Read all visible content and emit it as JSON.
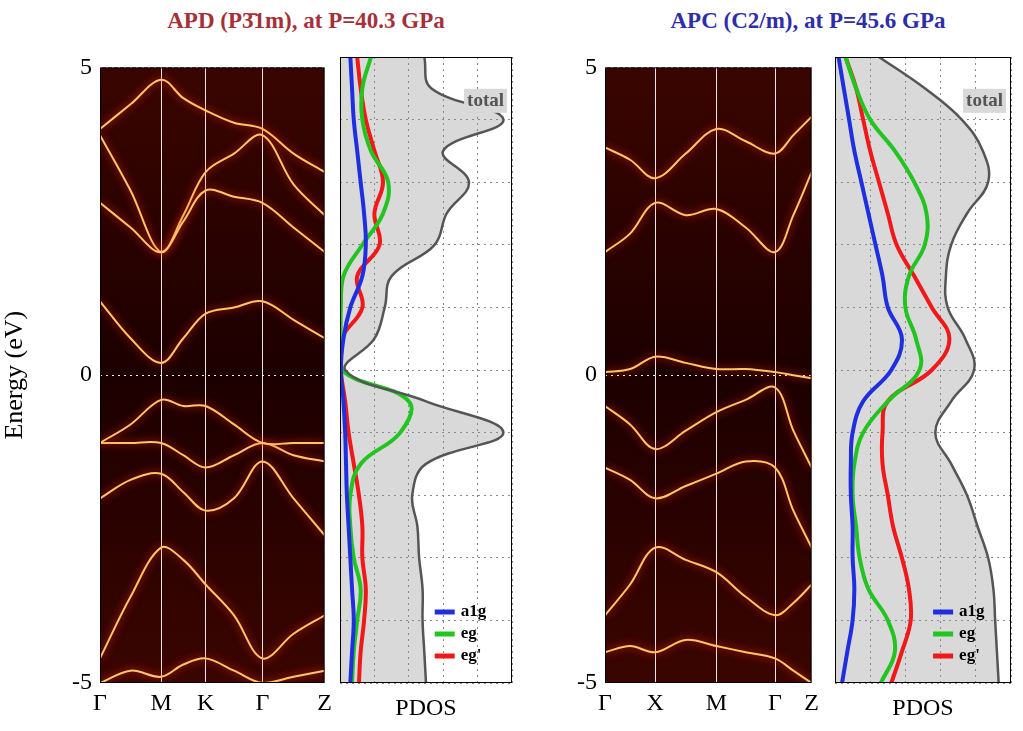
{
  "chart_data": [
    {
      "type": "line",
      "title": "APD (P3̄1m), at P=40.3 GPa",
      "y_label": "Energy (eV)",
      "x": [
        0,
        0.5,
        1,
        1.365,
        1.73,
        2.195,
        2.66,
        3.17,
        3.68
      ],
      "xlim": [
        0,
        3.68
      ],
      "xticks": [
        {
          "value": 0,
          "label": "Γ"
        },
        {
          "value": 1,
          "label": "M"
        },
        {
          "value": 1.73,
          "label": "K"
        },
        {
          "value": 2.66,
          "label": "Γ"
        },
        {
          "value": 3.68,
          "label": "Z"
        }
      ],
      "ylim": [
        -5,
        5
      ],
      "yticks": [
        -5,
        0,
        5
      ],
      "grid": true,
      "color": "#ffc46a",
      "series": [
        {
          "values": [
            1.2,
            0.6,
            0.2,
            0.6,
            1.0,
            1.1,
            1.2,
            0.9,
            0.6
          ]
        },
        {
          "values": [
            2.8,
            2.4,
            2.0,
            2.5,
            3.0,
            2.9,
            2.8,
            2.4,
            2.0
          ]
        },
        {
          "values": [
            3.9,
            3.0,
            2.0,
            2.6,
            3.3,
            3.6,
            3.9,
            3.1,
            2.6
          ]
        },
        {
          "values": [
            4.0,
            4.4,
            4.8,
            4.5,
            4.3,
            4.1,
            4.0,
            3.6,
            3.3
          ]
        },
        {
          "values": [
            -1.1,
            -0.8,
            -0.4,
            -0.5,
            -0.5,
            -0.8,
            -1.1,
            -1.1,
            -1.1
          ]
        },
        {
          "values": [
            -1.1,
            -1.1,
            -1.1,
            -1.3,
            -1.5,
            -1.3,
            -1.1,
            -1.3,
            -1.4
          ]
        },
        {
          "values": [
            -2.0,
            -1.7,
            -1.6,
            -1.9,
            -2.2,
            -2.0,
            -1.4,
            -2.0,
            -2.6
          ]
        },
        {
          "values": [
            -4.6,
            -3.6,
            -2.8,
            -3.0,
            -3.4,
            -3.9,
            -4.6,
            -4.2,
            -3.9
          ]
        },
        {
          "values": [
            -5,
            -4.8,
            -4.9,
            -4.7,
            -4.6,
            -4.8,
            -5,
            -4.9,
            -4.8
          ]
        }
      ]
    },
    {
      "type": "line",
      "orientation": "horizontal",
      "x_label": "PDOS",
      "y": [
        5,
        4.5,
        4,
        3.5,
        3,
        2.5,
        2,
        1.5,
        1,
        0.5,
        0,
        -0.5,
        -1,
        -1.5,
        -2,
        -2.5,
        -3,
        -3.5,
        -4,
        -4.5,
        -5
      ],
      "xlim": [
        0,
        10
      ],
      "xticks": [
        0,
        2,
        4,
        6,
        8,
        10
      ],
      "ylim": [
        -5,
        5
      ],
      "yticks": [
        -5,
        -4,
        -3,
        -2,
        -1,
        0,
        1,
        2,
        3,
        4,
        5
      ],
      "grid": true,
      "tick_labels": false,
      "legend": "lower right",
      "series": [
        {
          "name": "total",
          "type": "area",
          "color": "#555555",
          "values": [
            4.9,
            5.3,
            9.5,
            6.0,
            7.5,
            6.2,
            5.5,
            3.0,
            2.6,
            2.0,
            0.3,
            5.0,
            9.5,
            5.0,
            4.2,
            4.5,
            4.6,
            4.8,
            4.8,
            4.9,
            5.0
          ]
        },
        {
          "name": "a1g",
          "color": "#1f2fe0",
          "values": [
            0.6,
            0.7,
            0.8,
            1.0,
            1.2,
            1.4,
            1.5,
            1.3,
            0.6,
            0.2,
            0.05,
            0.2,
            0.3,
            0.35,
            0.4,
            0.5,
            0.6,
            0.7,
            0.8,
            0.7,
            0.6
          ]
        },
        {
          "name": "eg",
          "color": "#22c41f",
          "values": [
            1.8,
            1.3,
            1.3,
            1.8,
            2.8,
            2.5,
            1.3,
            0.2,
            0.05,
            0.05,
            0.1,
            4.0,
            3.5,
            1.2,
            0.6,
            0.6,
            0.8,
            1.2,
            1.0,
            0.8,
            0.7
          ]
        },
        {
          "name": "eg'",
          "color": "#f01818",
          "values": [
            1.0,
            1.2,
            1.5,
            2.0,
            2.5,
            2.0,
            2.3,
            1.0,
            1.3,
            0.1,
            0.05,
            0.3,
            0.5,
            0.8,
            1.1,
            1.3,
            1.3,
            1.5,
            1.4,
            1.2,
            1.1
          ]
        }
      ]
    },
    {
      "type": "line",
      "title": "APC (C2/m), at P=45.6 GPa",
      "x": [
        0,
        0.5,
        1,
        1.61,
        2.22,
        2.805,
        3.39,
        3.755,
        4.12
      ],
      "xlim": [
        0,
        4.12
      ],
      "xticks": [
        {
          "value": 0,
          "label": "Γ"
        },
        {
          "value": 1,
          "label": "X"
        },
        {
          "value": 2.22,
          "label": "M"
        },
        {
          "value": 3.39,
          "label": "Γ"
        },
        {
          "value": 4.12,
          "label": "Z"
        }
      ],
      "ylim": [
        -5,
        5
      ],
      "yticks": [
        -5,
        0,
        5
      ],
      "grid": true,
      "color": "#ffc46a",
      "series": [
        {
          "values": [
            0.05,
            0.1,
            0.3,
            0.2,
            0.1,
            0.1,
            0.05,
            0.0,
            -0.05
          ]
        },
        {
          "values": [
            2.0,
            2.3,
            2.8,
            2.6,
            2.7,
            2.4,
            2.0,
            2.6,
            3.3
          ]
        },
        {
          "values": [
            3.7,
            3.5,
            3.2,
            3.6,
            4.0,
            3.8,
            3.6,
            3.9,
            4.2
          ]
        },
        {
          "values": [
            -0.5,
            -0.8,
            -1.2,
            -0.9,
            -0.6,
            -0.4,
            -0.2,
            -0.9,
            -1.5
          ]
        },
        {
          "values": [
            -1.5,
            -1.7,
            -2.0,
            -1.8,
            -1.6,
            -1.4,
            -1.5,
            -2.2,
            -2.8
          ]
        },
        {
          "values": [
            -3.9,
            -3.4,
            -2.8,
            -3.0,
            -3.2,
            -3.6,
            -3.9,
            -3.7,
            -3.4
          ]
        },
        {
          "values": [
            -4.5,
            -4.4,
            -4.5,
            -4.3,
            -4.4,
            -4.5,
            -4.6,
            -4.8,
            -5
          ]
        }
      ]
    },
    {
      "type": "line",
      "orientation": "horizontal",
      "x_label": "PDOS",
      "y": [
        5,
        4.5,
        4,
        3.5,
        3,
        2.5,
        2,
        1.5,
        1,
        0.5,
        0,
        -0.5,
        -1,
        -1.5,
        -2,
        -2.5,
        -3,
        -3.5,
        -4,
        -4.5,
        -5
      ],
      "xlim": [
        0,
        10
      ],
      "xticks": [
        0,
        2,
        4,
        6,
        8,
        10
      ],
      "ylim": [
        -5,
        5
      ],
      "yticks": [
        -5,
        -4,
        -3,
        -2,
        -1,
        0,
        1,
        2,
        3,
        4,
        5
      ],
      "grid": true,
      "tick_labels": false,
      "legend": "lower right",
      "series": [
        {
          "name": "total",
          "type": "area",
          "color": "#555555",
          "values": [
            2.5,
            5.1,
            7.2,
            8.4,
            8.7,
            7.5,
            6.6,
            6.3,
            6.4,
            7.4,
            7.9,
            6.6,
            5.7,
            6.6,
            7.5,
            8.1,
            8.7,
            9.0,
            9.1,
            9.2,
            9.3
          ]
        },
        {
          "name": "a1g",
          "color": "#1f2fe0",
          "values": [
            0.2,
            0.5,
            0.8,
            1.1,
            1.5,
            1.9,
            2.3,
            2.7,
            3.0,
            3.8,
            3.2,
            1.6,
            1.0,
            0.9,
            0.9,
            1.0,
            1.0,
            1.1,
            1.0,
            0.7,
            0.4
          ]
        },
        {
          "name": "eg",
          "color": "#22c41f",
          "values": [
            0.6,
            1.2,
            2.0,
            3.4,
            4.5,
            5.2,
            5.1,
            4.2,
            4.0,
            4.6,
            4.8,
            3.0,
            1.6,
            1.1,
            1.0,
            1.2,
            1.4,
            1.9,
            3.0,
            3.4,
            2.6
          ]
        },
        {
          "name": "eg'",
          "color": "#f01818",
          "values": [
            0.6,
            1.2,
            1.6,
            2.0,
            2.5,
            3.0,
            3.5,
            4.5,
            5.5,
            6.5,
            5.5,
            3.0,
            2.7,
            2.7,
            3.0,
            3.3,
            3.8,
            4.2,
            4.3,
            3.8,
            3.2
          ]
        }
      ]
    }
  ]
}
